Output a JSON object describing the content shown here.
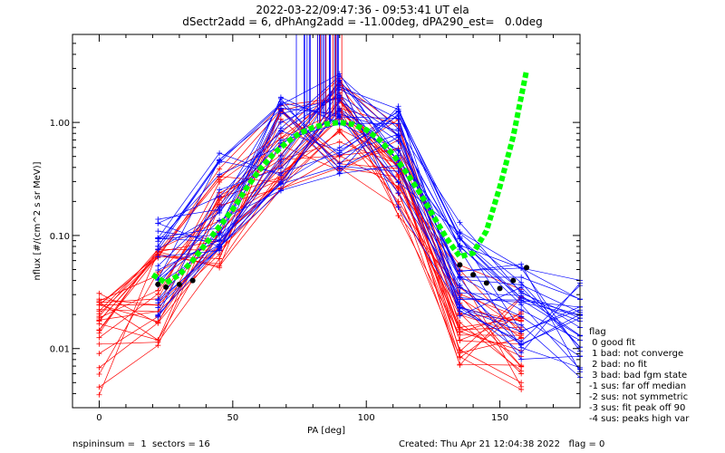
{
  "chart_data": {
    "type": "line",
    "title": "2022-03-22/09:47:36 - 09:53:41 UT ela",
    "subtitle": "dSectr2add = 6, dPhAng2add = -11.00deg, dPA290_est=   0.0deg",
    "xlabel": "PA [deg]",
    "ylabel": "nflux [#/(cm^2 s sr MeV)]",
    "xlim": [
      -10,
      180
    ],
    "ylim": [
      0.003,
      6
    ],
    "yscale": "log",
    "x_ticks": [
      0,
      50,
      100,
      150
    ],
    "x_tick_labels": [
      "0",
      "50",
      "100",
      "150"
    ],
    "y_ticks": [
      0.01,
      0.1,
      1.0
    ],
    "y_tick_labels": [
      "0.01",
      "0.10",
      "1.00"
    ],
    "grid": false,
    "legend_position": "right",
    "series": [
      {
        "color": "#ff0000",
        "x": [
          0,
          22,
          45,
          68,
          90,
          112,
          135,
          158
        ],
        "y": [
          0.011,
          0.03,
          0.14,
          0.55,
          0.95,
          0.4,
          0.02,
          0.012
        ]
      },
      {
        "color": "#0000ff",
        "x": [
          22,
          45,
          68,
          90,
          112,
          135,
          158,
          180
        ],
        "y": [
          0.05,
          0.2,
          0.7,
          0.98,
          0.5,
          0.05,
          0.02,
          0.015
        ]
      },
      {
        "color": "#00ff00",
        "x": [
          20,
          25,
          30,
          35,
          40,
          45,
          50,
          55,
          60,
          65,
          70,
          75,
          80,
          85,
          90,
          95,
          100,
          105,
          110,
          115,
          120,
          125,
          130,
          135,
          140,
          145,
          150,
          155,
          160
        ],
        "y": [
          0.045,
          0.038,
          0.045,
          0.06,
          0.085,
          0.12,
          0.17,
          0.26,
          0.38,
          0.52,
          0.66,
          0.8,
          0.9,
          0.97,
          1.0,
          0.96,
          0.86,
          0.7,
          0.52,
          0.36,
          0.24,
          0.15,
          0.095,
          0.065,
          0.07,
          0.11,
          0.27,
          0.75,
          2.9
        ]
      },
      {
        "color": "#000000",
        "x": [
          22,
          25,
          30,
          35,
          135,
          140,
          145,
          150,
          155,
          160
        ],
        "y": [
          0.037,
          0.035,
          0.037,
          0.04,
          0.055,
          0.045,
          0.038,
          0.034,
          0.04,
          0.052
        ]
      }
    ],
    "legend": {
      "title": "flag",
      "entries": [
        " 0 good fit",
        " 1 bad: not converge",
        " 2 bad: no fit",
        " 3 bad: bad fgm state",
        "-1 sus: far off median",
        "-2 sus: not symmetric",
        "-3 sus: fit peak off 90",
        "-4 sus: peaks high var"
      ]
    },
    "footer": {
      "left": "nspininsum =  1  sectors = 16",
      "right": "Created: Thu Apr 21 12:04:38 2022   flag = 0"
    }
  }
}
